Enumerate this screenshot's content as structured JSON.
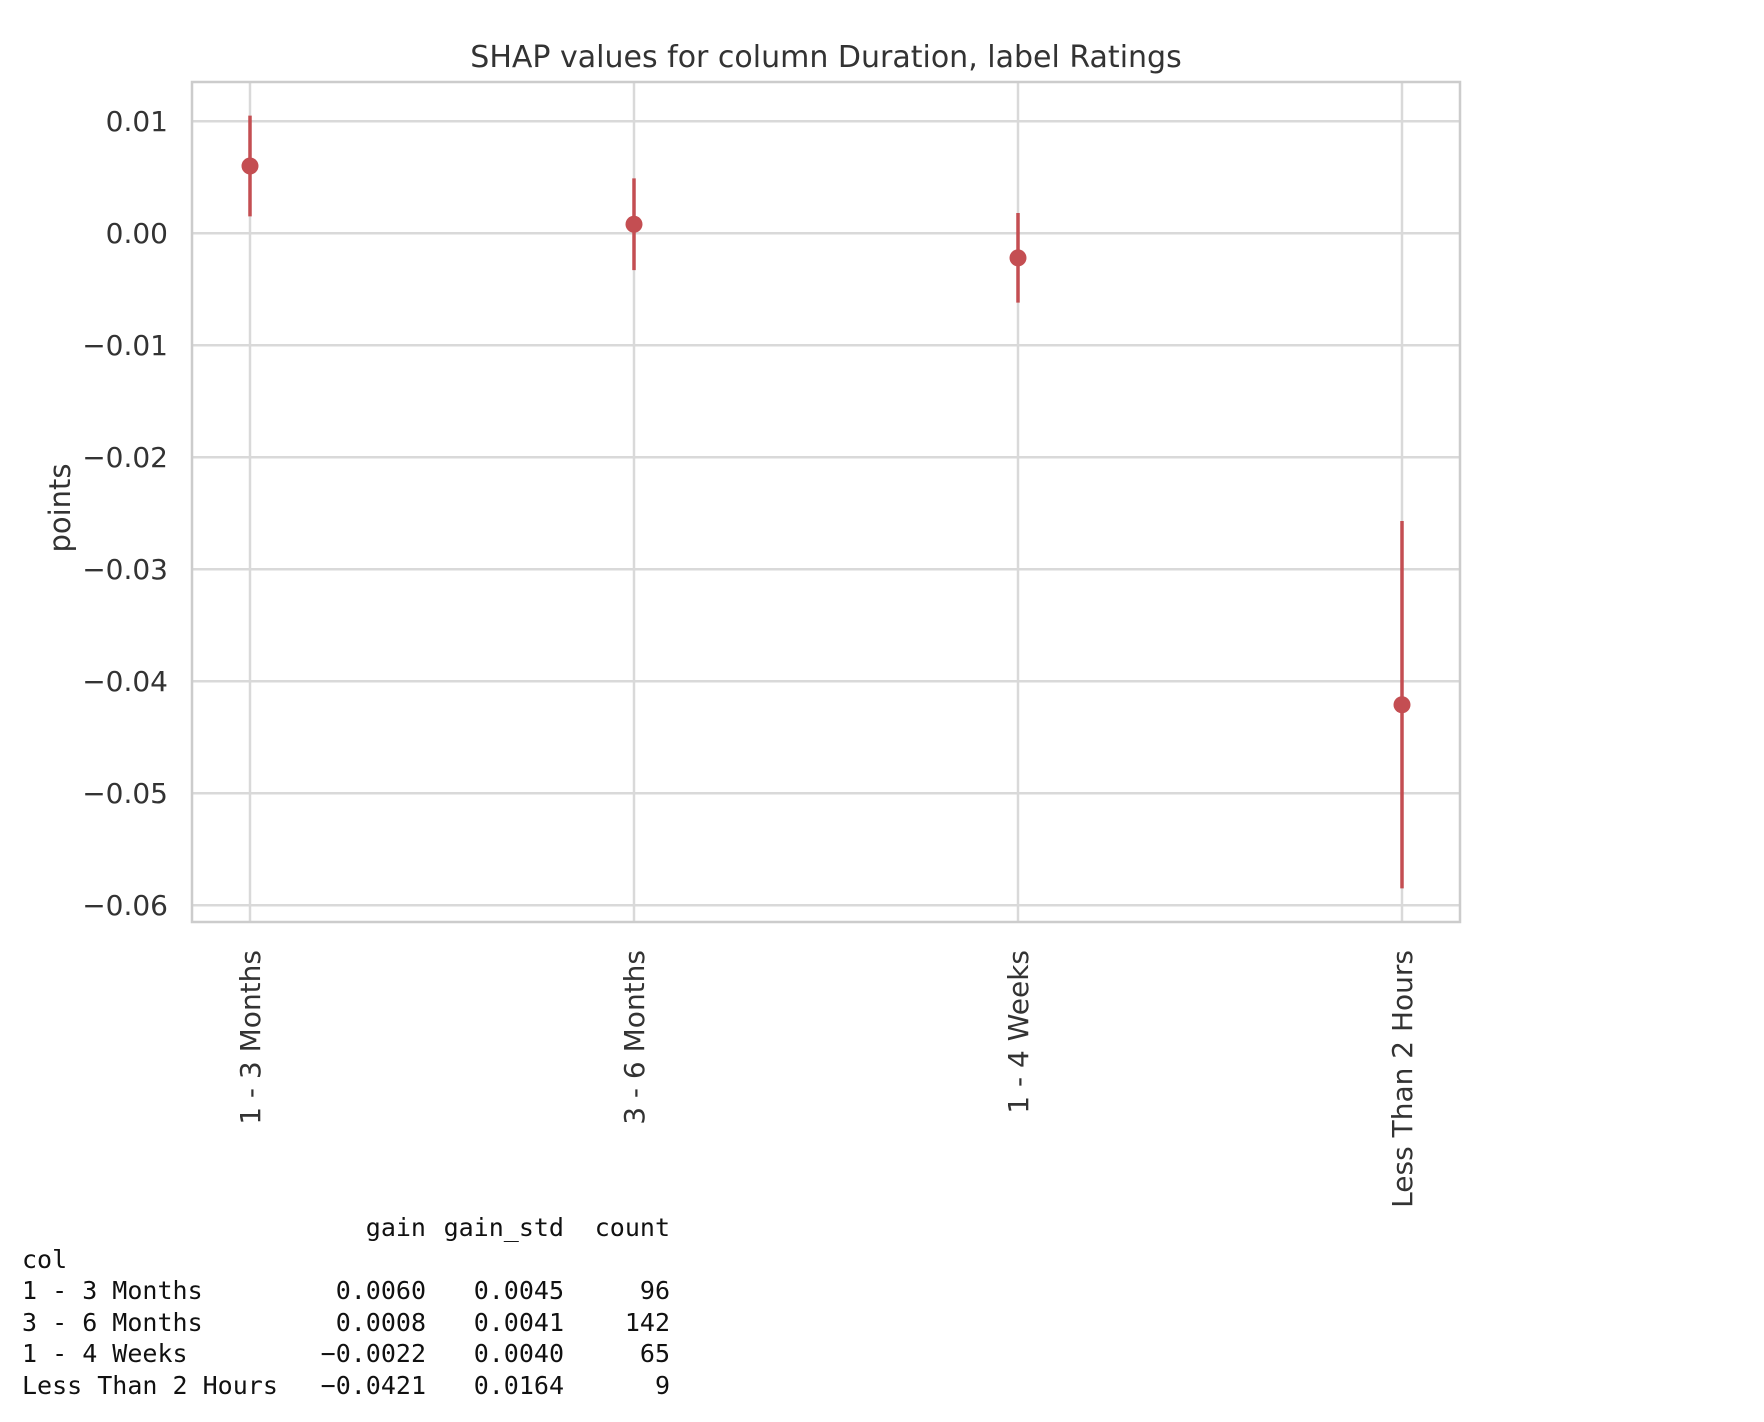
{
  "chart_data": {
    "type": "scatter",
    "title": "SHAP values for column Duration, label Ratings",
    "xlabel": "",
    "ylabel": "points",
    "categories": [
      "1 - 3 Months",
      "3 - 6 Months",
      "1 - 4 Weeks",
      "Less Than 2 Hours"
    ],
    "values": [
      0.006,
      0.0008,
      -0.0022,
      -0.0421
    ],
    "errors": [
      0.0045,
      0.0041,
      0.004,
      0.0164
    ],
    "ylim": [
      -0.0615,
      0.0135
    ],
    "yticks": [
      0.01,
      0.0,
      -0.01,
      -0.02,
      -0.03,
      -0.04,
      -0.05,
      -0.06
    ],
    "ytick_labels": [
      "0.01",
      "0.00",
      "−0.01",
      "−0.02",
      "−0.03",
      "−0.04",
      "−0.05",
      "−0.06"
    ],
    "grid": true,
    "marker_color": "#c44e52"
  },
  "table": {
    "headers": [
      "",
      "gain",
      "gain_std",
      "count"
    ],
    "index_name": "col",
    "rows": [
      [
        "1 - 3 Months",
        "0.0060",
        "0.0045",
        "96"
      ],
      [
        "3 - 6 Months",
        "0.0008",
        "0.0041",
        "142"
      ],
      [
        "1 - 4 Weeks",
        "−0.0022",
        "0.0040",
        "65"
      ],
      [
        "Less Than 2 Hours",
        "−0.0421",
        "0.0164",
        "9"
      ]
    ]
  }
}
